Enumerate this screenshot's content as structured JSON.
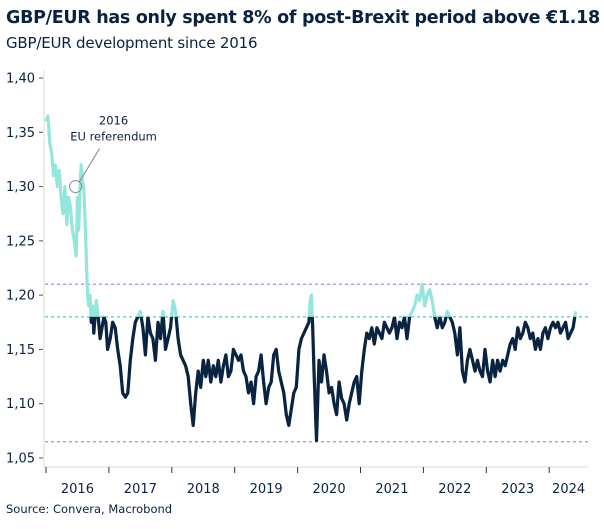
{
  "chart_data": {
    "type": "line",
    "title": "GBP/EUR has only spent 8% of post-Brexit period above €1.18",
    "subtitle": "GBP/EUR development since 2016",
    "source": "Source: Convera, Macrobond",
    "xlabel": "",
    "ylabel": "",
    "ylim": [
      1.05,
      1.4
    ],
    "xlim": [
      2016.0,
      2024.5
    ],
    "y_ticks": [
      "1,05",
      "1,10",
      "1,15",
      "1,20",
      "1,25",
      "1,30",
      "1,35",
      "1,40"
    ],
    "y_tick_values": [
      1.05,
      1.1,
      1.15,
      1.2,
      1.25,
      1.3,
      1.35,
      1.4
    ],
    "x_ticks": [
      "2016",
      "2017",
      "2018",
      "2019",
      "2020",
      "2021",
      "2022",
      "2023",
      "2024"
    ],
    "grid": false,
    "legend": "none",
    "colors": {
      "above_threshold": "#94e6dc",
      "below_threshold": "#0b2240",
      "threshold_line": "#3fd2c7",
      "band_lines": "#9a8cf0",
      "text": "#0a2240",
      "axis": "#d9d9d9"
    },
    "threshold": 1.18,
    "reference_lines": [
      {
        "name": "upper-band",
        "value": 1.21,
        "style": "dashed"
      },
      {
        "name": "threshold",
        "value": 1.18,
        "style": "dashed"
      },
      {
        "name": "lower-band",
        "value": 1.065,
        "style": "dashed"
      }
    ],
    "annotation": {
      "line1": "2016",
      "line2": "EU referendum",
      "x": 2016.47,
      "y": 1.3
    },
    "series": [
      {
        "name": "GBP/EUR",
        "x": [
          2016.0,
          2016.03,
          2016.06,
          2016.09,
          2016.12,
          2016.15,
          2016.18,
          2016.21,
          2016.24,
          2016.27,
          2016.3,
          2016.33,
          2016.36,
          2016.39,
          2016.42,
          2016.45,
          2016.48,
          2016.5,
          2016.52,
          2016.54,
          2016.56,
          2016.58,
          2016.6,
          2016.62,
          2016.64,
          2016.66,
          2016.68,
          2016.7,
          2016.72,
          2016.74,
          2016.76,
          2016.78,
          2016.8,
          2016.83,
          2016.86,
          2016.89,
          2016.92,
          2016.95,
          2016.98,
          2017.02,
          2017.06,
          2017.1,
          2017.14,
          2017.18,
          2017.22,
          2017.26,
          2017.3,
          2017.34,
          2017.38,
          2017.42,
          2017.46,
          2017.5,
          2017.54,
          2017.58,
          2017.62,
          2017.66,
          2017.7,
          2017.74,
          2017.78,
          2017.82,
          2017.86,
          2017.9,
          2017.94,
          2017.98,
          2018.02,
          2018.06,
          2018.1,
          2018.14,
          2018.18,
          2018.22,
          2018.26,
          2018.3,
          2018.34,
          2018.38,
          2018.42,
          2018.46,
          2018.5,
          2018.54,
          2018.58,
          2018.62,
          2018.66,
          2018.7,
          2018.74,
          2018.78,
          2018.82,
          2018.86,
          2018.9,
          2018.94,
          2018.98,
          2019.02,
          2019.06,
          2019.1,
          2019.14,
          2019.18,
          2019.22,
          2019.26,
          2019.3,
          2019.34,
          2019.38,
          2019.42,
          2019.46,
          2019.5,
          2019.54,
          2019.58,
          2019.62,
          2019.66,
          2019.7,
          2019.74,
          2019.78,
          2019.82,
          2019.86,
          2019.9,
          2019.94,
          2019.98,
          2020.02,
          2020.06,
          2020.1,
          2020.14,
          2020.18,
          2020.2,
          2020.22,
          2020.24,
          2020.26,
          2020.3,
          2020.34,
          2020.38,
          2020.42,
          2020.46,
          2020.5,
          2020.54,
          2020.58,
          2020.62,
          2020.66,
          2020.7,
          2020.74,
          2020.78,
          2020.82,
          2020.86,
          2020.9,
          2020.94,
          2020.98,
          2021.02,
          2021.06,
          2021.1,
          2021.14,
          2021.18,
          2021.22,
          2021.26,
          2021.3,
          2021.34,
          2021.38,
          2021.42,
          2021.46,
          2021.5,
          2021.54,
          2021.58,
          2021.62,
          2021.66,
          2021.7,
          2021.74,
          2021.78,
          2021.82,
          2021.86,
          2021.9,
          2021.94,
          2021.98,
          2022.02,
          2022.06,
          2022.1,
          2022.14,
          2022.18,
          2022.22,
          2022.26,
          2022.3,
          2022.34,
          2022.38,
          2022.42,
          2022.46,
          2022.5,
          2022.54,
          2022.58,
          2022.62,
          2022.66,
          2022.7,
          2022.74,
          2022.78,
          2022.82,
          2022.86,
          2022.9,
          2022.94,
          2022.98,
          2023.02,
          2023.06,
          2023.1,
          2023.14,
          2023.18,
          2023.22,
          2023.26,
          2023.3,
          2023.34,
          2023.38,
          2023.42,
          2023.46,
          2023.5,
          2023.54,
          2023.58,
          2023.62,
          2023.66,
          2023.7,
          2023.74,
          2023.78,
          2023.82,
          2023.86,
          2023.9,
          2023.94,
          2023.98,
          2024.02,
          2024.06,
          2024.1,
          2024.14,
          2024.18,
          2024.22,
          2024.26,
          2024.3,
          2024.34,
          2024.38,
          2024.42
        ],
        "values": [
          1.36,
          1.365,
          1.34,
          1.33,
          1.31,
          1.32,
          1.3,
          1.315,
          1.29,
          1.275,
          1.3,
          1.265,
          1.29,
          1.28,
          1.26,
          1.25,
          1.236,
          1.29,
          1.26,
          1.3,
          1.32,
          1.305,
          1.3,
          1.27,
          1.235,
          1.2,
          1.19,
          1.2,
          1.175,
          1.19,
          1.165,
          1.18,
          1.195,
          1.18,
          1.16,
          1.17,
          1.18,
          1.175,
          1.15,
          1.16,
          1.175,
          1.17,
          1.15,
          1.135,
          1.11,
          1.106,
          1.11,
          1.14,
          1.16,
          1.175,
          1.18,
          1.185,
          1.17,
          1.145,
          1.18,
          1.165,
          1.16,
          1.14,
          1.175,
          1.16,
          1.185,
          1.15,
          1.16,
          1.17,
          1.195,
          1.185,
          1.16,
          1.145,
          1.14,
          1.135,
          1.125,
          1.1,
          1.08,
          1.11,
          1.13,
          1.115,
          1.14,
          1.125,
          1.14,
          1.12,
          1.135,
          1.125,
          1.14,
          1.12,
          1.135,
          1.145,
          1.125,
          1.13,
          1.15,
          1.145,
          1.14,
          1.145,
          1.13,
          1.125,
          1.11,
          1.12,
          1.1,
          1.125,
          1.13,
          1.145,
          1.12,
          1.1,
          1.115,
          1.12,
          1.145,
          1.15,
          1.13,
          1.12,
          1.11,
          1.09,
          1.08,
          1.095,
          1.11,
          1.115,
          1.15,
          1.16,
          1.165,
          1.17,
          1.175,
          1.195,
          1.2,
          1.17,
          1.13,
          1.066,
          1.14,
          1.12,
          1.145,
          1.13,
          1.11,
          1.115,
          1.1,
          1.09,
          1.12,
          1.105,
          1.1,
          1.085,
          1.1,
          1.11,
          1.12,
          1.125,
          1.1,
          1.13,
          1.15,
          1.165,
          1.16,
          1.17,
          1.155,
          1.17,
          1.165,
          1.16,
          1.175,
          1.17,
          1.165,
          1.17,
          1.18,
          1.16,
          1.175,
          1.17,
          1.18,
          1.16,
          1.18,
          1.185,
          1.19,
          1.2,
          1.195,
          1.21,
          1.19,
          1.2,
          1.205,
          1.195,
          1.18,
          1.17,
          1.18,
          1.17,
          1.175,
          1.185,
          1.18,
          1.175,
          1.165,
          1.145,
          1.17,
          1.13,
          1.12,
          1.14,
          1.15,
          1.14,
          1.13,
          1.14,
          1.13,
          1.125,
          1.15,
          1.13,
          1.12,
          1.14,
          1.125,
          1.14,
          1.13,
          1.14,
          1.135,
          1.145,
          1.155,
          1.16,
          1.15,
          1.17,
          1.16,
          1.165,
          1.175,
          1.17,
          1.16,
          1.165,
          1.15,
          1.16,
          1.15,
          1.165,
          1.17,
          1.16,
          1.17,
          1.175,
          1.17,
          1.175,
          1.165,
          1.17,
          1.175,
          1.16,
          1.165,
          1.17,
          1.185
        ]
      }
    ]
  }
}
